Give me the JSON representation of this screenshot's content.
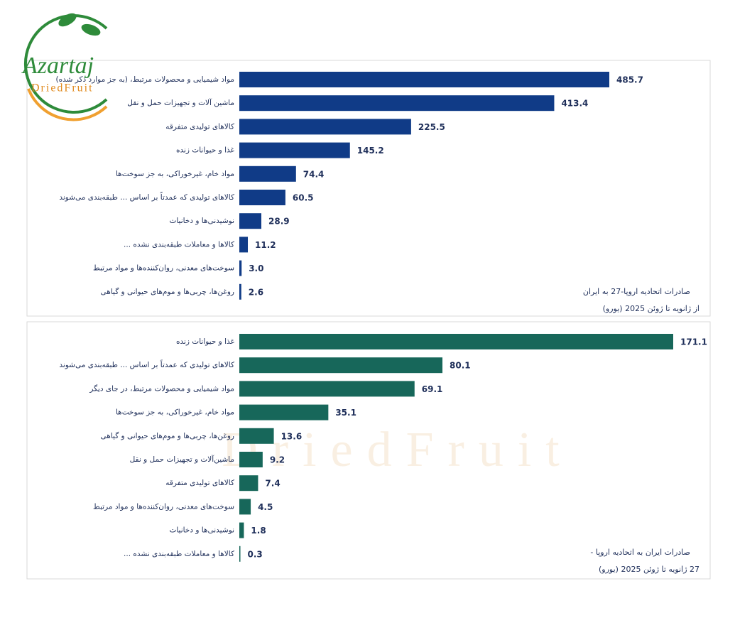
{
  "logo": {
    "name": "Azartaj",
    "tagline": "DriedFruit"
  },
  "chart_data": [
    {
      "type": "barh",
      "title": "صادرات اتحادیه اروپا-27 به ایران",
      "subtitle": "از ژانویه تا ژوئن 2025 (یورو)",
      "color": "#103b87",
      "categories": [
        "مواد شیمیایی و محصولات مرتبط، (به جز موارد ذکر شده)",
        "ماشین آلات و تجهیزات حمل و نقل",
        "کالاهای تولیدی متفرقه",
        "غذا و حیوانات زنده",
        "مواد خام، غیرخوراکی، به جز سوخت‌ها",
        "کالاهای تولیدی که عمدتاً بر اساس ... طبقه‌بندی می‌شوند",
        "نوشیدنی‌ها و دخانیات",
        "کالاها و معاملات طبقه‌بندی نشده ...",
        "سوخت‌های معدنی، روان‌کننده‌ها و مواد مرتبط",
        "روغن‌ها، چربی‌ها و موم‌های حیوانی و گیاهی"
      ],
      "values": [
        485.7,
        413.4,
        225.5,
        145.2,
        74.4,
        60.5,
        28.9,
        11.2,
        3.0,
        2.6
      ],
      "value_labels": [
        "485.7",
        "413.4",
        "225.5",
        "145.2",
        "74.4",
        "60.5",
        "28.9",
        "11.2",
        "3.0",
        "2.6"
      ]
    },
    {
      "type": "barh",
      "title": "صادرات ایران به اتحادیه اروپا -",
      "subtitle": "27 ژانویه تا ژوئن 2025 (یورو)",
      "color": "#17675a",
      "categories": [
        "غذا و حیوانات زنده",
        "کالاهای تولیدی که عمدتاً بر اساس ... طبقه‌بندی می‌شوند",
        "مواد شیمیایی و محصولات مرتبط، در جای دیگر",
        "مواد خام، غیرخوراکی، به جز سوخت‌ها",
        "روغن‌ها، چربی‌ها و موم‌های حیوانی و گیاهی",
        "ماشین‌آلات و تجهیزات حمل و نقل",
        "کالاهای تولیدی متفرقه",
        "سوخت‌های معدنی، روان‌کننده‌ها و مواد مرتبط",
        "نوشیدنی‌ها و دخانیات",
        "کالاها و معاملات طبقه‌بندی نشده ..."
      ],
      "values": [
        171.1,
        80.1,
        69.1,
        35.1,
        13.6,
        9.2,
        7.4,
        4.5,
        1.8,
        0.3
      ],
      "value_labels": [
        "171.1",
        "80.1",
        "69.1",
        "35.1",
        "13.6",
        "9.2",
        "7.4",
        "4.5",
        "1.8",
        "0.3"
      ]
    }
  ]
}
